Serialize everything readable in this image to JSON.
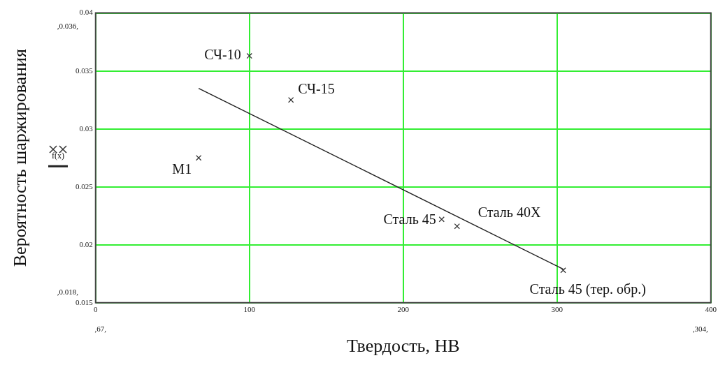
{
  "chart_data": {
    "type": "scatter",
    "xlabel": "Твердость, НВ",
    "ylabel": "Вероятность шаржирования",
    "xlim": [
      0,
      400
    ],
    "xticks": [
      0,
      100,
      200,
      300,
      400
    ],
    "ylim": [
      0.015,
      0.04
    ],
    "yticks": [
      0.015,
      0.02,
      0.025,
      0.03,
      0.035,
      0.04
    ],
    "grid": true,
    "legend": "left",
    "series": [
      {
        "marker": "cross",
        "color": "#333333",
        "x": [
          100,
          127,
          67,
          225,
          235,
          304
        ],
        "values": [
          0.0363,
          0.0325,
          0.0275,
          0.0222,
          0.0216,
          0.0178
        ]
      },
      {
        "type": "line",
        "marker": "none",
        "name": "f(x)",
        "color": "#222222",
        "x": [
          67,
          304
        ],
        "values": [
          0.0335,
          0.0179
        ]
      }
    ],
    "annotations": [
      {
        "text": "СЧ-10",
        "x": 100,
        "y": 0.0363
      },
      {
        "text": "СЧ-15",
        "x": 127,
        "y": 0.0325
      },
      {
        "text": "М1",
        "x": 67,
        "y": 0.0275
      },
      {
        "text": "Сталь 45",
        "x": 225,
        "y": 0.0222
      },
      {
        "text": "Сталь 40Х",
        "x": 235,
        "y": 0.0216
      },
      {
        "text": "Сталь 45 (тер. обр.)",
        "x": 304,
        "y": 0.0178
      },
      ",0.036,",
      ",0.018,",
      ",67,",
      ",304,"
    ]
  }
}
